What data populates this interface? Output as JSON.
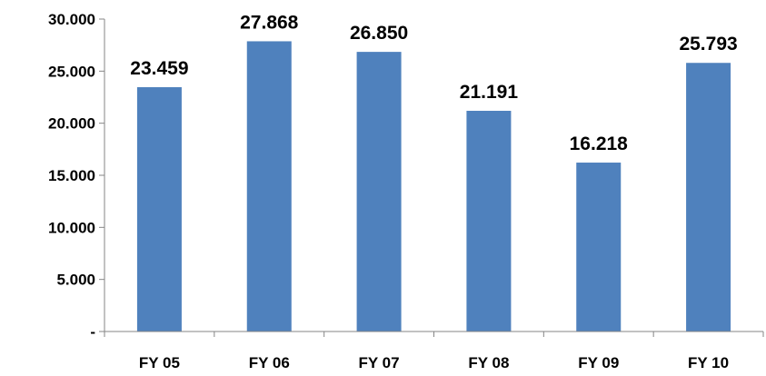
{
  "chart_data": {
    "type": "bar",
    "categories": [
      "FY 05",
      "FY 06",
      "FY 07",
      "FY 08",
      "FY 09",
      "FY 10"
    ],
    "values": [
      23459,
      27868,
      26850,
      21191,
      16218,
      25793
    ],
    "data_labels": [
      "23.459",
      "27.868",
      "26.850",
      "21.191",
      "16.218",
      "25.793"
    ],
    "ylim": [
      0,
      30000
    ],
    "yticks": [
      0,
      5000,
      10000,
      15000,
      20000,
      25000,
      30000
    ],
    "ytick_labels": [
      "-",
      "5.000",
      "10.000",
      "15.000",
      "20.000",
      "25.000",
      "30.000"
    ],
    "grid": false,
    "legend": "none",
    "bar_color": "#4f81bd",
    "title": "",
    "xlabel": "",
    "ylabel": ""
  }
}
